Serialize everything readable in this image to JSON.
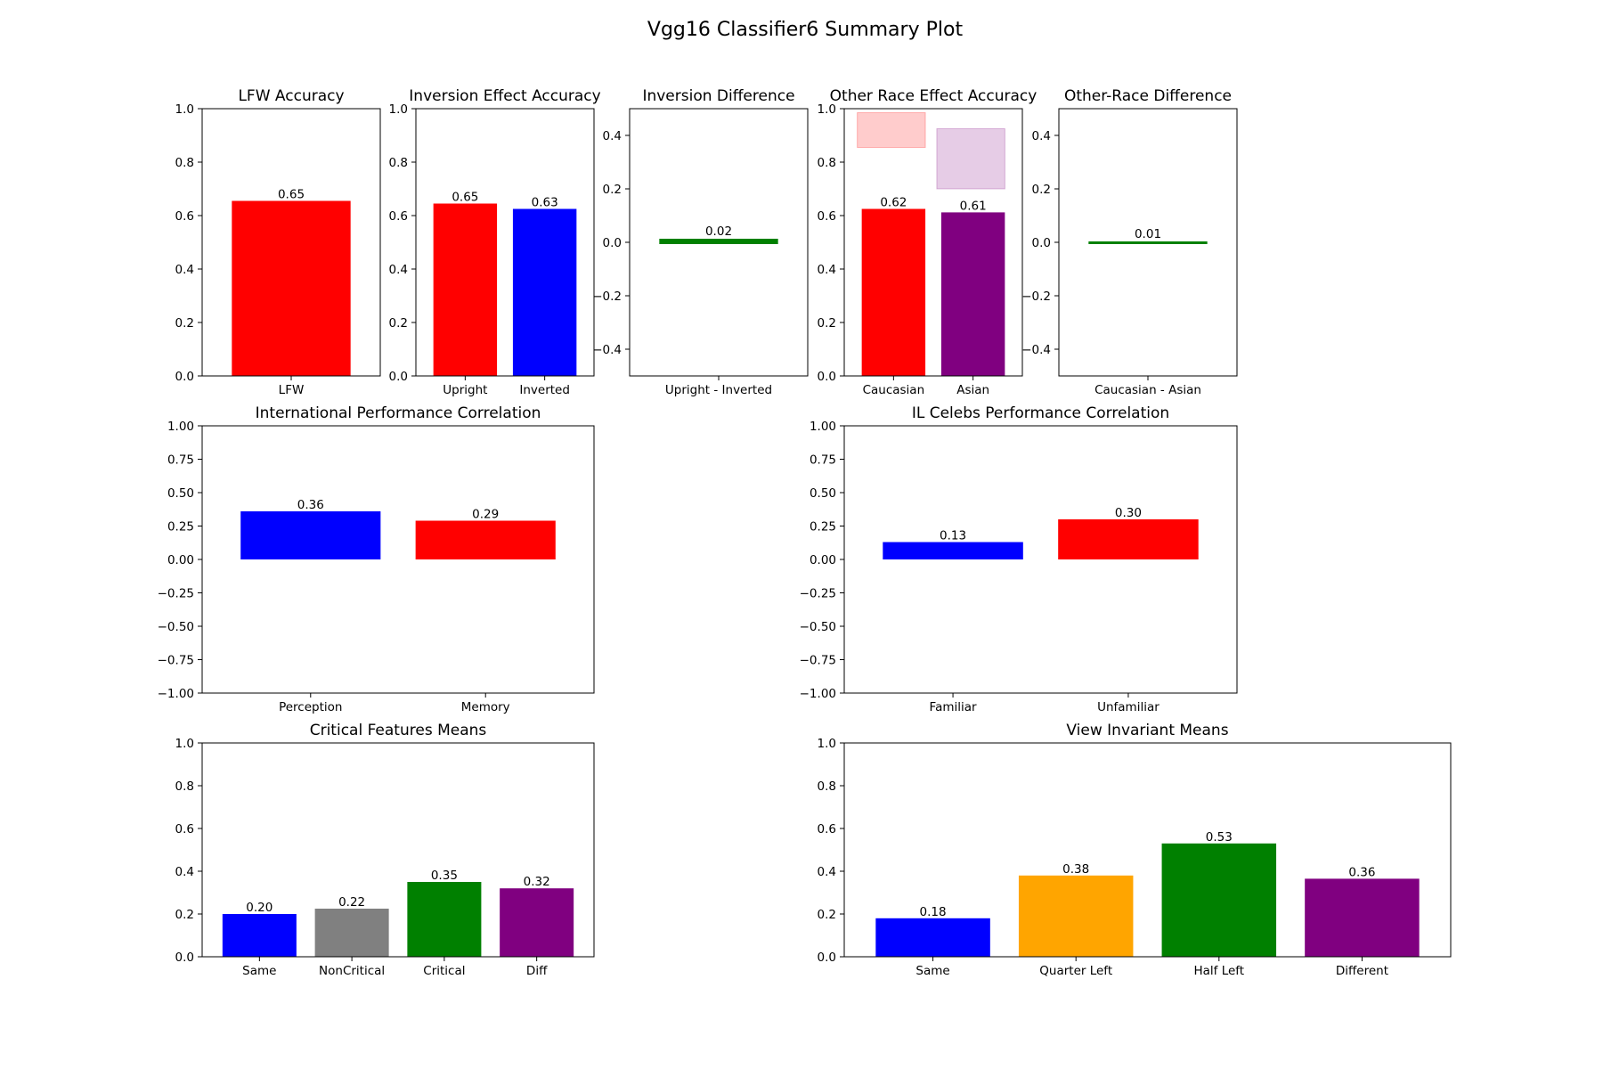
{
  "title": "Vgg16 Classifier6 Summary Plot",
  "chart_data": [
    {
      "id": "lfw",
      "type": "bar",
      "title": "LFW Accuracy",
      "categories": [
        "LFW"
      ],
      "values": [
        0.655
      ],
      "labels": [
        "0.65"
      ],
      "colors": [
        "#ff0000"
      ],
      "ylim": [
        0,
        1
      ],
      "yticks": [
        0,
        0.2,
        0.4,
        0.6,
        0.8,
        1.0
      ],
      "yticklabels": [
        "0.0",
        "0.2",
        "0.4",
        "0.6",
        "0.8",
        "1.0"
      ]
    },
    {
      "id": "inversion",
      "type": "bar",
      "title": "Inversion Effect Accuracy",
      "categories": [
        "Upright",
        "Inverted"
      ],
      "values": [
        0.645,
        0.625
      ],
      "labels": [
        "0.65",
        "0.63"
      ],
      "colors": [
        "#ff0000",
        "#0000ff"
      ],
      "ylim": [
        0,
        1
      ],
      "yticks": [
        0,
        0.2,
        0.4,
        0.6,
        0.8,
        1.0
      ],
      "yticklabels": [
        "0.0",
        "0.2",
        "0.4",
        "0.6",
        "0.8",
        "1.0"
      ]
    },
    {
      "id": "inversion_diff",
      "type": "bar",
      "title": "Inversion Difference",
      "categories": [
        "Upright - Inverted"
      ],
      "values": [
        0.02
      ],
      "labels": [
        "0.02"
      ],
      "colors": [
        "#008000"
      ],
      "ylim": [
        -0.5,
        0.5
      ],
      "yticks": [
        -0.4,
        -0.2,
        0,
        0.2,
        0.4
      ],
      "yticklabels": [
        "−0.4",
        "−0.2",
        "0.0",
        "0.2",
        "0.4"
      ]
    },
    {
      "id": "other_race",
      "type": "bar",
      "title": "Other Race Effect Accuracy",
      "categories": [
        "Caucasian",
        "Asian"
      ],
      "values": [
        0.625,
        0.612
      ],
      "labels": [
        "0.62",
        "0.61"
      ],
      "colors": [
        "#ff0000",
        "#800080"
      ],
      "ylim": [
        0,
        1
      ],
      "yticks": [
        0,
        0.2,
        0.4,
        0.6,
        0.8,
        1.0
      ],
      "yticklabels": [
        "0.0",
        "0.2",
        "0.4",
        "0.6",
        "0.8",
        "1.0"
      ],
      "shaded_ranges": [
        {
          "category": "Caucasian",
          "ymin": 0.855,
          "ymax": 0.985,
          "color": "#ff0000",
          "opacity": 0.2
        },
        {
          "category": "Asian",
          "ymin": 0.7,
          "ymax": 0.925,
          "color": "#800080",
          "opacity": 0.2
        }
      ]
    },
    {
      "id": "other_race_diff",
      "type": "bar",
      "title": "Other-Race Difference",
      "categories": [
        "Caucasian - Asian"
      ],
      "values": [
        0.01
      ],
      "labels": [
        "0.01"
      ],
      "colors": [
        "#008000"
      ],
      "ylim": [
        -0.5,
        0.5
      ],
      "yticks": [
        -0.4,
        -0.2,
        0,
        0.2,
        0.4
      ],
      "yticklabels": [
        "−0.4",
        "−0.2",
        "0.0",
        "0.2",
        "0.4"
      ]
    },
    {
      "id": "intl_corr",
      "type": "bar",
      "title": "International Performance Correlation",
      "categories": [
        "Perception",
        "Memory"
      ],
      "values": [
        0.36,
        0.29
      ],
      "labels": [
        "0.36",
        "0.29"
      ],
      "colors": [
        "#0000ff",
        "#ff0000"
      ],
      "ylim": [
        -1,
        1
      ],
      "yticks": [
        -1,
        -0.75,
        -0.5,
        -0.25,
        0,
        0.25,
        0.5,
        0.75,
        1
      ],
      "yticklabels": [
        "−1.00",
        "−0.75",
        "−0.50",
        "−0.25",
        "0.00",
        "0.25",
        "0.50",
        "0.75",
        "1.00"
      ]
    },
    {
      "id": "il_celebs_corr",
      "type": "bar",
      "title": "IL Celebs Performance Correlation",
      "categories": [
        "Familiar",
        "Unfamiliar"
      ],
      "values": [
        0.13,
        0.3
      ],
      "labels": [
        "0.13",
        "0.30"
      ],
      "colors": [
        "#0000ff",
        "#ff0000"
      ],
      "ylim": [
        -1,
        1
      ],
      "yticks": [
        -1,
        -0.75,
        -0.5,
        -0.25,
        0,
        0.25,
        0.5,
        0.75,
        1
      ],
      "yticklabels": [
        "−1.00",
        "−0.75",
        "−0.50",
        "−0.25",
        "0.00",
        "0.25",
        "0.50",
        "0.75",
        "1.00"
      ]
    },
    {
      "id": "critical_features",
      "type": "bar",
      "title": "Critical Features Means",
      "categories": [
        "Same",
        "NonCritical",
        "Critical",
        "Diff"
      ],
      "values": [
        0.2,
        0.225,
        0.35,
        0.32
      ],
      "labels": [
        "0.20",
        "0.22",
        "0.35",
        "0.32"
      ],
      "colors": [
        "#0000ff",
        "#808080",
        "#008000",
        "#800080"
      ],
      "ylim": [
        0,
        1
      ],
      "yticks": [
        0,
        0.2,
        0.4,
        0.6,
        0.8,
        1.0
      ],
      "yticklabels": [
        "0.0",
        "0.2",
        "0.4",
        "0.6",
        "0.8",
        "1.0"
      ]
    },
    {
      "id": "view_invariant",
      "type": "bar",
      "title": "View Invariant Means",
      "categories": [
        "Same",
        "Quarter Left",
        "Half Left",
        "Different"
      ],
      "values": [
        0.18,
        0.38,
        0.53,
        0.365
      ],
      "labels": [
        "0.18",
        "0.38",
        "0.53",
        "0.36"
      ],
      "colors": [
        "#0000ff",
        "#ffa500",
        "#008000",
        "#800080"
      ],
      "ylim": [
        0,
        1
      ],
      "yticks": [
        0,
        0.2,
        0.4,
        0.6,
        0.8,
        1.0
      ],
      "yticklabels": [
        "0.0",
        "0.2",
        "0.4",
        "0.6",
        "0.8",
        "1.0"
      ]
    }
  ]
}
